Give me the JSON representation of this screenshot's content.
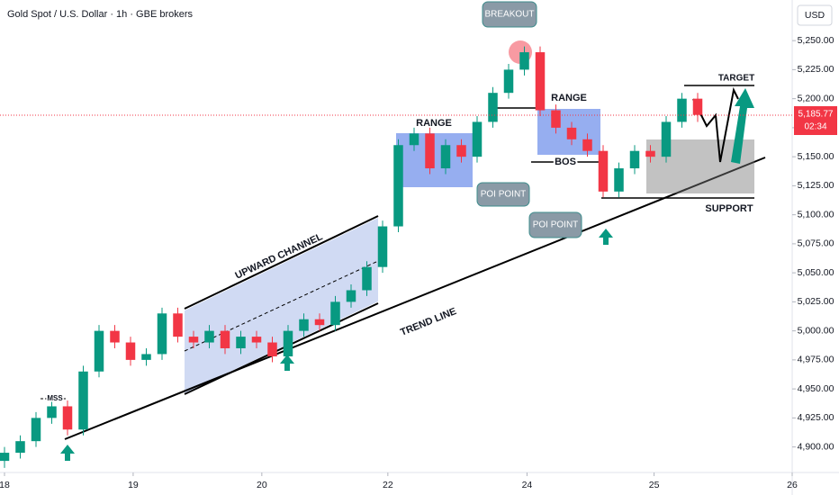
{
  "chart_data": {
    "type": "candlestick",
    "title": "Gold Spot / U.S. Dollar · 1h · GBE brokers",
    "currency": "USD",
    "x": [
      0,
      3,
      6,
      9,
      12,
      15,
      18,
      21,
      24,
      27,
      30,
      33,
      36,
      39,
      42,
      45,
      48,
      51,
      54,
      57,
      60,
      63,
      66,
      69,
      72,
      75,
      78,
      81,
      84,
      87,
      90,
      93,
      96,
      99,
      102,
      105,
      108,
      111,
      114,
      117,
      120,
      123,
      126,
      129,
      132
    ],
    "open": [
      4888,
      4895,
      4905,
      4925,
      4935,
      4915,
      4965,
      5000,
      4990,
      4975,
      4980,
      5015,
      4995,
      4990,
      5000,
      4985,
      4995,
      4990,
      4978,
      5000,
      5010,
      5005,
      5025,
      5035,
      5055,
      5090,
      5160,
      5170,
      5140,
      5160,
      5150,
      5180,
      5205,
      5225,
      5240,
      5190,
      5175,
      5165,
      5155,
      5120,
      5140,
      5155,
      5150,
      5180,
      5200
    ],
    "high": [
      4900,
      4910,
      4930,
      4940,
      4940,
      4970,
      5005,
      5005,
      4995,
      4985,
      5020,
      5020,
      5000,
      5005,
      5005,
      5000,
      5000,
      4995,
      5005,
      5015,
      5015,
      5030,
      5040,
      5060,
      5095,
      5165,
      5175,
      5175,
      5165,
      5165,
      5185,
      5210,
      5230,
      5245,
      5245,
      5195,
      5180,
      5170,
      5160,
      5145,
      5160,
      5160,
      5185,
      5205,
      5205
    ],
    "low": [
      4882,
      4890,
      4900,
      4920,
      4910,
      4910,
      4960,
      4985,
      4970,
      4970,
      4975,
      4990,
      4985,
      4985,
      4980,
      4980,
      4985,
      4973,
      4973,
      4995,
      5000,
      5000,
      5020,
      5030,
      5050,
      5085,
      5155,
      5135,
      5135,
      5145,
      5145,
      5175,
      5200,
      5220,
      5185,
      5170,
      5160,
      5150,
      5115,
      5115,
      5135,
      5145,
      5145,
      5175,
      5180
    ],
    "close": [
      4895,
      4905,
      4925,
      4935,
      4915,
      4965,
      5000,
      4990,
      4975,
      4980,
      5015,
      4995,
      4990,
      5000,
      4985,
      4995,
      4990,
      4978,
      5000,
      5010,
      5005,
      5025,
      5035,
      5055,
      5090,
      5160,
      5170,
      5140,
      5160,
      5150,
      5180,
      5205,
      5225,
      5240,
      5190,
      5175,
      5165,
      5155,
      5120,
      5140,
      5155,
      5150,
      5180,
      5200,
      5186
    ],
    "up_color": "#089981",
    "down_color": "#f23645",
    "xlim": [
      0,
      150
    ],
    "xticks": [
      {
        "value": 0,
        "label": "18"
      },
      {
        "value": 24.5,
        "label": "19"
      },
      {
        "value": 49,
        "label": "20"
      },
      {
        "value": 73,
        "label": "22"
      },
      {
        "value": 99.5,
        "label": "24"
      },
      {
        "value": 123.7,
        "label": "25"
      },
      {
        "value": 150,
        "label": "26"
      }
    ],
    "ylim": [
      4878,
      5285
    ],
    "yticks": [
      {
        "value": 4900,
        "label": "4,900.00"
      },
      {
        "value": 4925,
        "label": "4,925.00"
      },
      {
        "value": 4950,
        "label": "4,950.00"
      },
      {
        "value": 4975,
        "label": "4,975.00"
      },
      {
        "value": 5000,
        "label": "5,000.00"
      },
      {
        "value": 5025,
        "label": "5,025.00"
      },
      {
        "value": 5050,
        "label": "5,050.00"
      },
      {
        "value": 5075,
        "label": "5,075.00"
      },
      {
        "value": 5100,
        "label": "5,100.00"
      },
      {
        "value": 5125,
        "label": "5,125.00"
      },
      {
        "value": 5150,
        "label": "5,150.00"
      },
      {
        "value": 5175,
        "label": "5,175.00"
      },
      {
        "value": 5200,
        "label": "5,200.00"
      },
      {
        "value": 5225,
        "label": "5,225.00"
      },
      {
        "value": 5250,
        "label": "5,250.00"
      }
    ],
    "last_price": {
      "value": 5185.77,
      "label": "5,185.77"
    },
    "countdown": "02:34",
    "annotations": [
      "BREAKOUT",
      "RANGE",
      "RANGE",
      "POI POINT",
      "POI POINT",
      "BOS",
      "TARGET",
      "SUPPORT",
      "UPWARD CHANNEL",
      "TREND LINE",
      "MSS"
    ]
  }
}
